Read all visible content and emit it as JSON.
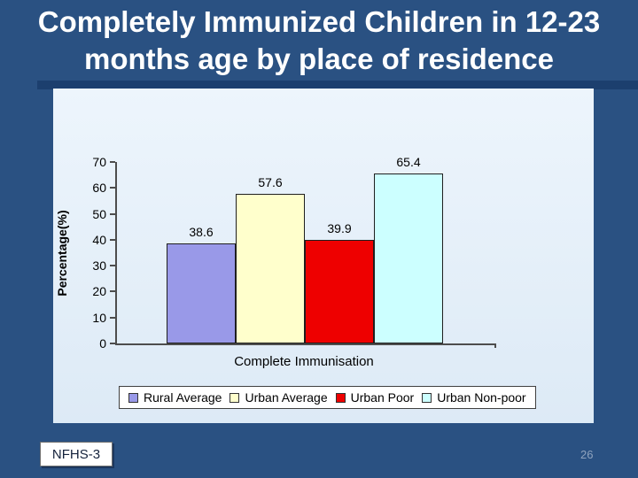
{
  "slide": {
    "title": "Completely Immunized Children in 12-23 months age by place of residence",
    "source_label": "NFHS-3",
    "page_number": "26",
    "colors": {
      "background": "#2A5182",
      "accent_band": "#1C3F6E",
      "panel_background": "#E4F0FA",
      "title_text": "#FFFFFF",
      "page_number_text": "#8FA3BE"
    }
  },
  "chart_data": {
    "type": "bar",
    "title": "",
    "xlabel": "Complete Immunisation",
    "ylabel": "Percentage(%)",
    "categories": [
      "Complete Immunisation"
    ],
    "series": [
      {
        "name": "Rural Average",
        "values": [
          38.6
        ],
        "color": "#9999E8"
      },
      {
        "name": "Urban Average",
        "values": [
          57.6
        ],
        "color": "#FFFFCC"
      },
      {
        "name": "Urban Poor",
        "values": [
          39.9
        ],
        "color": "#EE0000"
      },
      {
        "name": "Urban Non-poor",
        "values": [
          65.4
        ],
        "color": "#CCFFFF"
      }
    ],
    "value_labels": [
      38.6,
      57.6,
      39.9,
      65.4
    ],
    "ylim": [
      0,
      70
    ],
    "ytick_step": 10,
    "grid": false,
    "legend_position": "bottom"
  }
}
